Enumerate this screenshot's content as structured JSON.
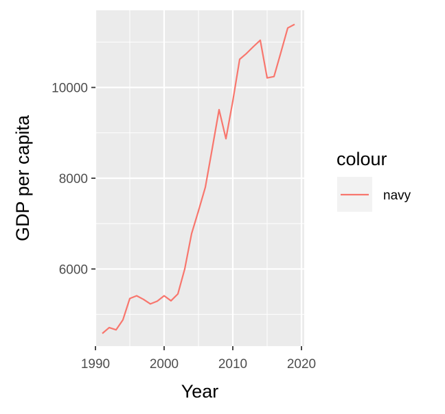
{
  "chart_data": {
    "type": "line",
    "title": "",
    "xlabel": "Year",
    "ylabel": "GDP per capita",
    "xlim": [
      1990.0,
      2020.4
    ],
    "ylim": [
      4300,
      11700
    ],
    "x_ticks": [
      1990,
      2000,
      2010,
      2020
    ],
    "y_ticks": [
      6000,
      8000,
      10000
    ],
    "x_tick_labels": [
      "1990",
      "2000",
      "2010",
      "2020"
    ],
    "y_tick_labels": [
      "6000",
      "8000",
      "10000"
    ],
    "grid": true,
    "legend": {
      "title": "colour",
      "position": "right"
    },
    "colors": {
      "panel": "#ebebeb",
      "grid": "#ffffff",
      "series": "#f8766d",
      "legend_key": "#f2f2f2"
    },
    "series": [
      {
        "name": "navy",
        "x": [
          1991,
          1992,
          1993,
          1994,
          1995,
          1996,
          1997,
          1998,
          1999,
          2000,
          2001,
          2002,
          2003,
          2004,
          2005,
          2006,
          2007,
          2008,
          2009,
          2010,
          2011,
          2012,
          2013,
          2014,
          2015,
          2016,
          2017,
          2018,
          2019
        ],
        "y": [
          4580,
          4710,
          4660,
          4880,
          5350,
          5410,
          5330,
          5230,
          5290,
          5410,
          5300,
          5450,
          6000,
          6780,
          7280,
          7800,
          8650,
          9510,
          8870,
          9700,
          10620,
          10750,
          10900,
          11040,
          10210,
          10240,
          10770,
          11310,
          11390
        ]
      }
    ]
  }
}
